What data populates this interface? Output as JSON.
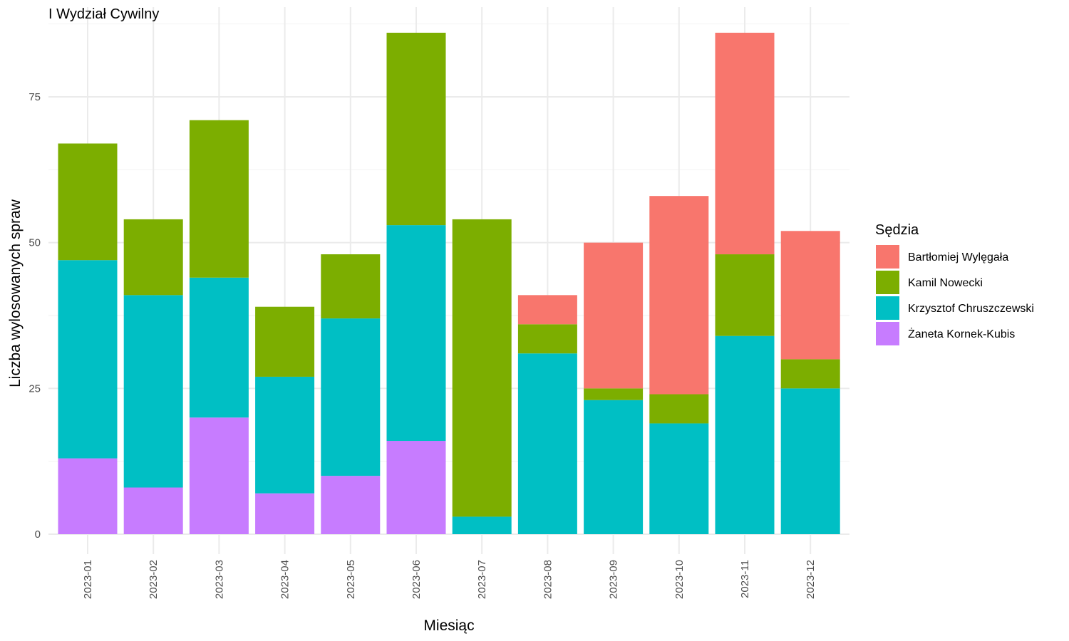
{
  "chart_data": {
    "type": "bar",
    "stacked": true,
    "title": "I Wydział Cywilny",
    "xlabel": "Miesiąc",
    "ylabel": "Liczba wylosowanych spraw",
    "ylim": [
      0,
      88
    ],
    "yticks": [
      0,
      25,
      50,
      75
    ],
    "grid": true,
    "legend_title": "Sędzia",
    "legend_position": "right",
    "categories": [
      "2023-01",
      "2023-02",
      "2023-03",
      "2023-04",
      "2023-05",
      "2023-06",
      "2023-07",
      "2023-08",
      "2023-09",
      "2023-10",
      "2023-11",
      "2023-12"
    ],
    "series": [
      {
        "name": "Żaneta Kornek-Kubis",
        "color": "#C77CFF",
        "values": [
          13,
          8,
          20,
          7,
          10,
          16,
          0,
          0,
          0,
          0,
          0,
          0
        ]
      },
      {
        "name": "Krzysztof Chruszczewski",
        "color": "#00BFC4",
        "values": [
          34,
          33,
          24,
          20,
          27,
          37,
          3,
          31,
          23,
          19,
          34,
          25
        ]
      },
      {
        "name": "Kamil Nowecki",
        "color": "#7CAE00",
        "values": [
          20,
          13,
          27,
          12,
          11,
          33,
          51,
          5,
          2,
          5,
          14,
          5
        ]
      },
      {
        "name": "Bartłomiej Wylęgała",
        "color": "#F8766D",
        "values": [
          0,
          0,
          0,
          0,
          0,
          0,
          0,
          5,
          25,
          34,
          38,
          22
        ]
      }
    ],
    "legend_order": [
      "Bartłomiej Wylęgała",
      "Kamil Nowecki",
      "Krzysztof Chruszczewski",
      "Żaneta Kornek-Kubis"
    ]
  }
}
